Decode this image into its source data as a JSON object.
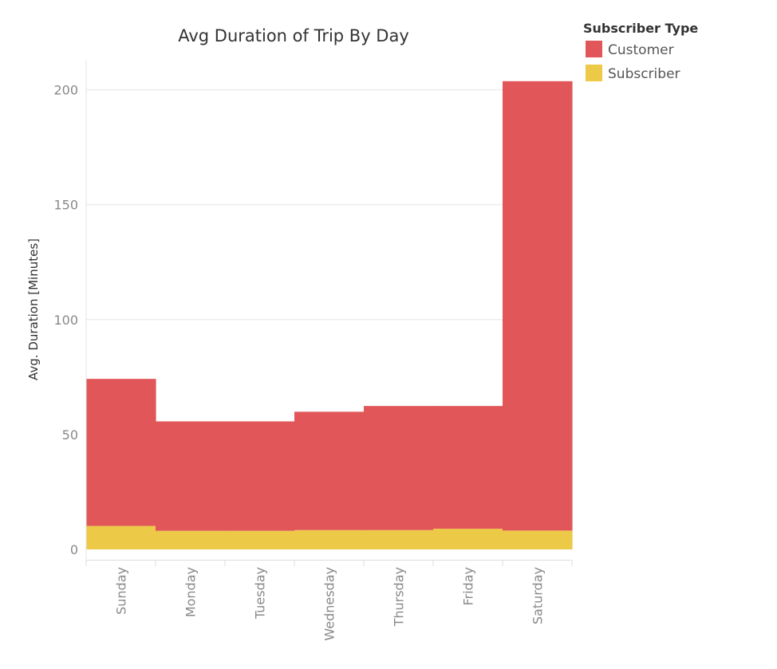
{
  "chart_data": {
    "type": "bar",
    "stacked": true,
    "title": "Avg Duration of Trip By Day",
    "xlabel": "",
    "ylabel": "Avg. Duration [Minutes]",
    "ylim": [
      -4.5,
      213
    ],
    "yticks": [
      0,
      50,
      100,
      150,
      200
    ],
    "grid": true,
    "legend_position": "top-right",
    "legend_title": "Subscriber Type",
    "categories": [
      "Sunday",
      "Monday",
      "Tuesday",
      "Wednesday",
      "Thursday",
      "Friday",
      "Saturday"
    ],
    "series": [
      {
        "name": "Subscriber",
        "color": "#edc948",
        "values": [
          10.2,
          8.1,
          8.1,
          8.4,
          8.4,
          9.0,
          8.2
        ]
      },
      {
        "name": "Customer",
        "color": "#e15759",
        "values": [
          64.0,
          47.6,
          47.6,
          51.5,
          54.0,
          53.4,
          195.5
        ]
      }
    ],
    "legend_order": [
      "Customer",
      "Subscriber"
    ]
  }
}
